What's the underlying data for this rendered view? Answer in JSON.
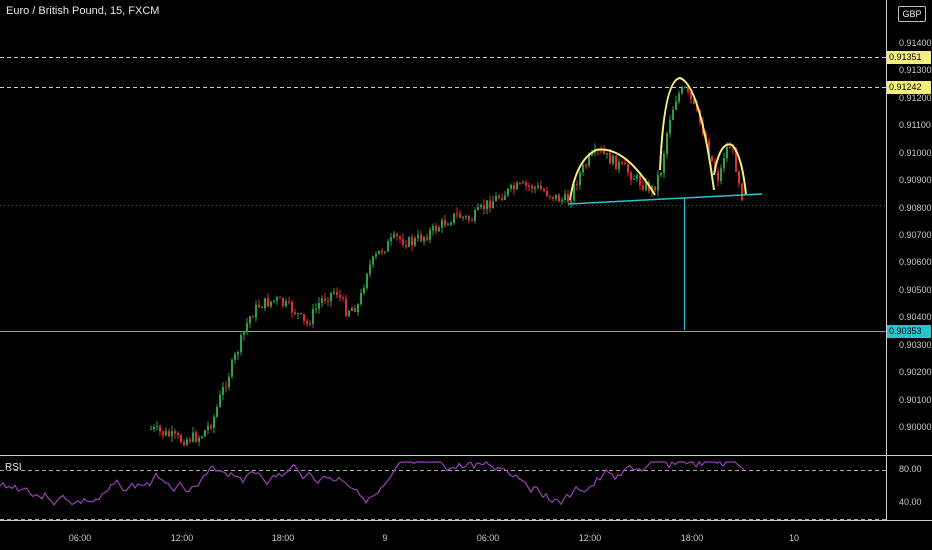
{
  "header": {
    "title": "Euro / British Pound, 15, FXCM",
    "currency": "GBP"
  },
  "price_axis": {
    "ticks": [
      "0.91400",
      "0.91300",
      "0.91200",
      "0.91100",
      "0.91000",
      "0.90900",
      "0.90800",
      "0.90700",
      "0.90600",
      "0.90500",
      "0.90400",
      "0.90300",
      "0.90200",
      "0.90100",
      "0.90000"
    ],
    "levels": [
      {
        "label": "0.91351",
        "value": 0.91351,
        "style": "dashed",
        "color": "#cccccc",
        "tag_bg": "#f5f07a",
        "tag_fg": "#000000"
      },
      {
        "label": "0.91242",
        "value": 0.91242,
        "style": "dashed",
        "color": "#cccccc",
        "tag_bg": "#f5f07a",
        "tag_fg": "#000000"
      },
      {
        "label": "0.90353",
        "value": 0.90353,
        "style": "solid",
        "color": "#27c4cf",
        "tag_bg": "#27c4cf",
        "tag_fg": "#000000"
      }
    ]
  },
  "rsi": {
    "label": "RSI",
    "ticks": [
      "80.00",
      "40.00"
    ]
  },
  "time_axis": {
    "ticks": [
      "06:00",
      "12:00",
      "18:00",
      "9",
      "06:00",
      "12:00",
      "18:00",
      "10"
    ]
  },
  "colors": {
    "bull": "#2f9e44",
    "bear": "#d93030",
    "rsi": "#9b3fb5",
    "pattern": "#f3ef7a",
    "neckline": "#27c4cf",
    "grid": "#3a3a3a"
  },
  "annotations": {
    "pattern": "head and shoulders"
  }
}
